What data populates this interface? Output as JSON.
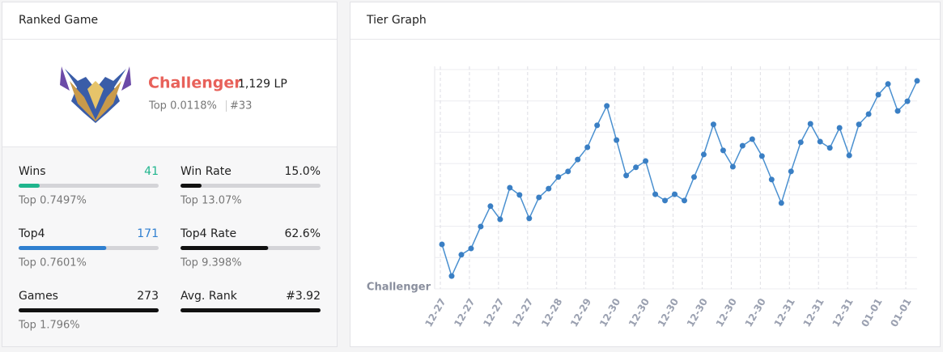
{
  "ranked": {
    "title": "Ranked Game",
    "tier": "Challenger",
    "lp": "1,129 LP",
    "top": "Top 0.0118%",
    "rank": "#33",
    "stats": [
      {
        "label": "Wins",
        "value": 41,
        "sub": "Top 0.7497%",
        "color": "#1fb58d"
      },
      {
        "label": "Win Rate",
        "value": "15.0%",
        "sub": "Top 13.07%",
        "color": "#111111"
      },
      {
        "label": "Top4",
        "value": 171,
        "sub": "Top 0.7601%",
        "color": "#2f7fd0"
      },
      {
        "label": "Top4 Rate",
        "value": "62.6%",
        "sub": "Top 9.398%",
        "color": "#111111"
      },
      {
        "label": "Games",
        "value": 273,
        "sub": "Top 1.796%",
        "color": "#111111"
      },
      {
        "label": "Avg. Rank",
        "value": "#3.92",
        "color": "#111111"
      }
    ]
  },
  "chart_data": {
    "type": "line",
    "title": "Tier Graph",
    "color": "#4a90d0",
    "categories": [
      "12-27",
      null,
      null,
      "12-27",
      null,
      null,
      "12-27",
      null,
      null,
      "12-27",
      null,
      null,
      "12-28",
      null,
      null,
      "12-29",
      null,
      null,
      "12-30",
      null,
      null,
      "12-30",
      null,
      null,
      "12-30",
      null,
      null,
      "12-30",
      null,
      null,
      "12-30",
      null,
      null,
      "12-30",
      null,
      null,
      "12-31",
      null,
      null,
      "12-31",
      null,
      null,
      "12-31",
      null,
      null,
      "01-01",
      null,
      null,
      "01-01",
      null
    ],
    "values": [
      1.42,
      0.41,
      1.09,
      1.29,
      1.99,
      2.64,
      2.22,
      3.23,
      3.0,
      2.25,
      2.92,
      3.2,
      3.57,
      3.75,
      4.13,
      4.52,
      5.22,
      5.84,
      4.75,
      3.62,
      3.88,
      4.08,
      3.02,
      2.82,
      3.02,
      2.82,
      3.57,
      4.29,
      5.25,
      4.42,
      3.9,
      4.57,
      4.78,
      4.24,
      3.49,
      2.74,
      3.75,
      4.68,
      5.27,
      4.7,
      4.5,
      5.14,
      4.26,
      5.25,
      5.58,
      6.2,
      6.54,
      5.68,
      5.99,
      6.64
    ],
    "ylim": [
      0,
      7
    ],
    "yticks": [
      {
        "value": 0,
        "label": "Challenger"
      },
      {
        "value": 1,
        "label": null
      },
      {
        "value": 2,
        "label": null
      },
      {
        "value": 3,
        "label": null
      },
      {
        "value": 4,
        "label": null
      },
      {
        "value": 5,
        "label": null
      },
      {
        "value": 6,
        "label": null
      },
      {
        "value": 7,
        "label": null
      }
    ],
    "grid": true
  }
}
